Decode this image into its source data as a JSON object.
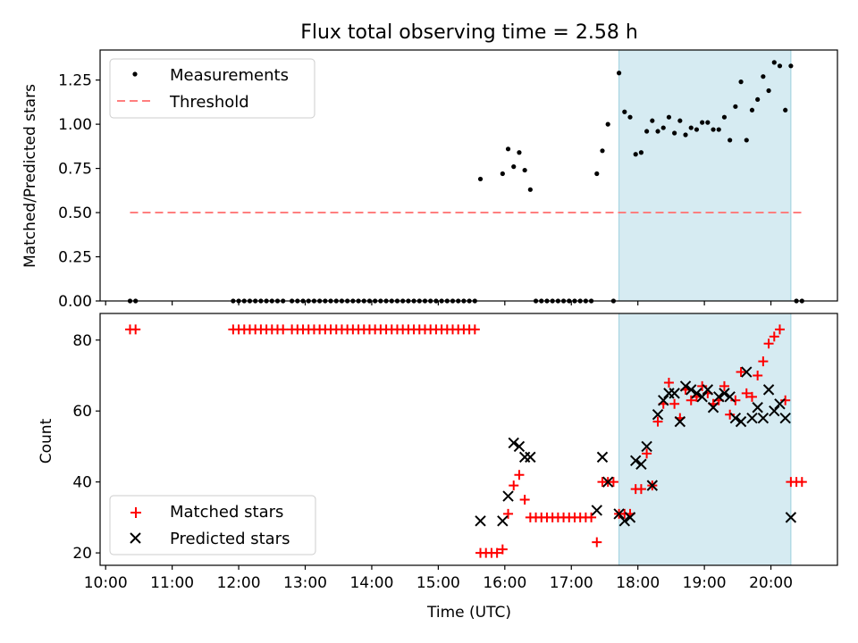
{
  "figure": {
    "title": "Flux total observing time = 2.58 h",
    "xlabel": "Time (UTC)",
    "xticks": [
      "10:00",
      "11:00",
      "12:00",
      "13:00",
      "14:00",
      "15:00",
      "16:00",
      "17:00",
      "18:00",
      "19:00",
      "20:00"
    ]
  },
  "colors": {
    "shade": "#add8e6",
    "threshold": "#ff7f7f",
    "matched": "#ff0000",
    "predicted": "#000000",
    "measurement": "#000000"
  },
  "chart_data": [
    {
      "type": "scatter",
      "panel": "top",
      "ylabel": "Matched/Predicted stars",
      "xlim": [
        "09:55",
        "21:00"
      ],
      "ylim": [
        0,
        1.42
      ],
      "yticks": [
        "0.00",
        "0.25",
        "0.50",
        "0.75",
        "1.00",
        "1.25"
      ],
      "legend": {
        "placement": "upper-left",
        "entries": [
          "Measurements",
          "Threshold"
        ]
      },
      "shaded_interval": [
        "17:43",
        "20:18"
      ],
      "threshold": {
        "name": "Threshold",
        "value": 0.5,
        "x": [
          "10:22",
          "20:30"
        ],
        "style": "dashed"
      },
      "series": [
        {
          "name": "Measurements",
          "points": [
            [
              "10:22",
              0
            ],
            [
              "10:27",
              0
            ],
            [
              "11:55",
              0
            ],
            [
              "12:00",
              0
            ],
            [
              "12:05",
              0
            ],
            [
              "12:10",
              0
            ],
            [
              "12:15",
              0
            ],
            [
              "12:20",
              0
            ],
            [
              "12:25",
              0
            ],
            [
              "12:30",
              0
            ],
            [
              "12:35",
              0
            ],
            [
              "12:40",
              0
            ],
            [
              "12:48",
              0
            ],
            [
              "12:53",
              0
            ],
            [
              "12:58",
              0
            ],
            [
              "13:03",
              0
            ],
            [
              "13:08",
              0
            ],
            [
              "13:13",
              0
            ],
            [
              "13:18",
              0
            ],
            [
              "13:23",
              0
            ],
            [
              "13:28",
              0
            ],
            [
              "13:33",
              0
            ],
            [
              "13:38",
              0
            ],
            [
              "13:43",
              0
            ],
            [
              "13:48",
              0
            ],
            [
              "13:53",
              0
            ],
            [
              "13:58",
              0
            ],
            [
              "14:03",
              0
            ],
            [
              "14:08",
              0
            ],
            [
              "14:13",
              0
            ],
            [
              "14:18",
              0
            ],
            [
              "14:23",
              0
            ],
            [
              "14:28",
              0
            ],
            [
              "14:33",
              0
            ],
            [
              "14:38",
              0
            ],
            [
              "14:43",
              0
            ],
            [
              "14:48",
              0
            ],
            [
              "14:53",
              0
            ],
            [
              "14:58",
              0
            ],
            [
              "15:03",
              0
            ],
            [
              "15:08",
              0
            ],
            [
              "15:13",
              0
            ],
            [
              "15:18",
              0
            ],
            [
              "15:23",
              0
            ],
            [
              "15:28",
              0
            ],
            [
              "15:33",
              0
            ],
            [
              "15:38",
              0.69
            ],
            [
              "15:58",
              0.72
            ],
            [
              "16:03",
              0.86
            ],
            [
              "16:08",
              0.76
            ],
            [
              "16:13",
              0.84
            ],
            [
              "16:18",
              0.74
            ],
            [
              "16:23",
              0.63
            ],
            [
              "16:28",
              0
            ],
            [
              "16:33",
              0
            ],
            [
              "16:38",
              0
            ],
            [
              "16:43",
              0
            ],
            [
              "16:48",
              0
            ],
            [
              "16:53",
              0
            ],
            [
              "16:58",
              0
            ],
            [
              "17:03",
              0
            ],
            [
              "17:08",
              0
            ],
            [
              "17:13",
              0
            ],
            [
              "17:18",
              0
            ],
            [
              "17:23",
              0.72
            ],
            [
              "17:28",
              0.85
            ],
            [
              "17:33",
              1.0
            ],
            [
              "17:38",
              0
            ],
            [
              "17:43",
              1.29
            ],
            [
              "17:48",
              1.07
            ],
            [
              "17:53",
              1.04
            ],
            [
              "17:58",
              0.83
            ],
            [
              "18:03",
              0.84
            ],
            [
              "18:08",
              0.96
            ],
            [
              "18:13",
              1.02
            ],
            [
              "18:18",
              0.96
            ],
            [
              "18:23",
              0.98
            ],
            [
              "18:28",
              1.04
            ],
            [
              "18:33",
              0.95
            ],
            [
              "18:38",
              1.02
            ],
            [
              "18:43",
              0.94
            ],
            [
              "18:48",
              0.98
            ],
            [
              "18:53",
              0.97
            ],
            [
              "18:58",
              1.01
            ],
            [
              "19:03",
              1.01
            ],
            [
              "19:08",
              0.97
            ],
            [
              "19:13",
              0.97
            ],
            [
              "19:18",
              1.04
            ],
            [
              "19:23",
              0.91
            ],
            [
              "19:28",
              1.1
            ],
            [
              "19:33",
              1.24
            ],
            [
              "19:38",
              0.91
            ],
            [
              "19:43",
              1.08
            ],
            [
              "19:48",
              1.14
            ],
            [
              "19:53",
              1.27
            ],
            [
              "19:58",
              1.19
            ],
            [
              "20:03",
              1.35
            ],
            [
              "20:08",
              1.33
            ],
            [
              "20:13",
              1.08
            ],
            [
              "20:18",
              1.33
            ],
            [
              "20:23",
              0
            ],
            [
              "20:28",
              0
            ]
          ]
        }
      ]
    },
    {
      "type": "scatter",
      "panel": "bottom",
      "ylabel": "Count",
      "xlabel": "Time (UTC)",
      "xlim": [
        "09:55",
        "21:00"
      ],
      "ylim": [
        16.5,
        87.5
      ],
      "yticks": [
        "20",
        "40",
        "60",
        "80"
      ],
      "legend": {
        "placement": "lower-left",
        "entries": [
          "Matched stars",
          "Predicted stars"
        ]
      },
      "shaded_interval": [
        "17:43",
        "20:18"
      ],
      "series": [
        {
          "name": "Matched stars",
          "marker": "+",
          "points": [
            [
              "10:22",
              83
            ],
            [
              "10:27",
              83
            ],
            [
              "11:55",
              83
            ],
            [
              "12:00",
              83
            ],
            [
              "12:05",
              83
            ],
            [
              "12:10",
              83
            ],
            [
              "12:15",
              83
            ],
            [
              "12:20",
              83
            ],
            [
              "12:25",
              83
            ],
            [
              "12:30",
              83
            ],
            [
              "12:35",
              83
            ],
            [
              "12:40",
              83
            ],
            [
              "12:48",
              83
            ],
            [
              "12:53",
              83
            ],
            [
              "12:58",
              83
            ],
            [
              "13:03",
              83
            ],
            [
              "13:08",
              83
            ],
            [
              "13:13",
              83
            ],
            [
              "13:18",
              83
            ],
            [
              "13:23",
              83
            ],
            [
              "13:28",
              83
            ],
            [
              "13:33",
              83
            ],
            [
              "13:38",
              83
            ],
            [
              "13:43",
              83
            ],
            [
              "13:48",
              83
            ],
            [
              "13:53",
              83
            ],
            [
              "13:58",
              83
            ],
            [
              "14:03",
              83
            ],
            [
              "14:08",
              83
            ],
            [
              "14:13",
              83
            ],
            [
              "14:18",
              83
            ],
            [
              "14:23",
              83
            ],
            [
              "14:28",
              83
            ],
            [
              "14:33",
              83
            ],
            [
              "14:38",
              83
            ],
            [
              "14:43",
              83
            ],
            [
              "14:48",
              83
            ],
            [
              "14:53",
              83
            ],
            [
              "14:58",
              83
            ],
            [
              "15:03",
              83
            ],
            [
              "15:08",
              83
            ],
            [
              "15:13",
              83
            ],
            [
              "15:18",
              83
            ],
            [
              "15:23",
              83
            ],
            [
              "15:28",
              83
            ],
            [
              "15:33",
              83
            ],
            [
              "15:38",
              20
            ],
            [
              "15:43",
              20
            ],
            [
              "15:48",
              20
            ],
            [
              "15:53",
              20
            ],
            [
              "15:58",
              21
            ],
            [
              "16:03",
              31
            ],
            [
              "16:08",
              39
            ],
            [
              "16:13",
              42
            ],
            [
              "16:18",
              35
            ],
            [
              "16:23",
              30
            ],
            [
              "16:28",
              30
            ],
            [
              "16:33",
              30
            ],
            [
              "16:38",
              30
            ],
            [
              "16:43",
              30
            ],
            [
              "16:48",
              30
            ],
            [
              "16:53",
              30
            ],
            [
              "16:58",
              30
            ],
            [
              "17:03",
              30
            ],
            [
              "17:08",
              30
            ],
            [
              "17:13",
              30
            ],
            [
              "17:18",
              30
            ],
            [
              "17:23",
              23
            ],
            [
              "17:28",
              40
            ],
            [
              "17:33",
              40
            ],
            [
              "17:38",
              40
            ],
            [
              "17:43",
              31
            ],
            [
              "17:48",
              31
            ],
            [
              "17:53",
              31
            ],
            [
              "17:58",
              38
            ],
            [
              "18:03",
              38
            ],
            [
              "18:08",
              48
            ],
            [
              "18:13",
              39
            ],
            [
              "18:18",
              57
            ],
            [
              "18:23",
              62
            ],
            [
              "18:28",
              68
            ],
            [
              "18:33",
              62
            ],
            [
              "18:38",
              58
            ],
            [
              "18:43",
              66
            ],
            [
              "18:48",
              63
            ],
            [
              "18:53",
              64
            ],
            [
              "18:58",
              67
            ],
            [
              "19:03",
              65
            ],
            [
              "19:08",
              62
            ],
            [
              "19:13",
              63
            ],
            [
              "19:18",
              67
            ],
            [
              "19:23",
              59
            ],
            [
              "19:28",
              63
            ],
            [
              "19:33",
              71
            ],
            [
              "19:38",
              65
            ],
            [
              "19:43",
              64
            ],
            [
              "19:48",
              70
            ],
            [
              "19:53",
              74
            ],
            [
              "19:58",
              79
            ],
            [
              "20:03",
              81
            ],
            [
              "20:08",
              83
            ],
            [
              "20:13",
              63
            ],
            [
              "20:18",
              40
            ],
            [
              "20:23",
              40
            ],
            [
              "20:28",
              40
            ]
          ]
        },
        {
          "name": "Predicted stars",
          "marker": "x",
          "points": [
            [
              "15:38",
              29
            ],
            [
              "15:58",
              29
            ],
            [
              "16:03",
              36
            ],
            [
              "16:08",
              51
            ],
            [
              "16:13",
              50
            ],
            [
              "16:18",
              47
            ],
            [
              "16:23",
              47
            ],
            [
              "17:23",
              32
            ],
            [
              "17:28",
              47
            ],
            [
              "17:33",
              40
            ],
            [
              "17:43",
              31
            ],
            [
              "17:48",
              29
            ],
            [
              "17:53",
              30
            ],
            [
              "17:58",
              46
            ],
            [
              "18:03",
              45
            ],
            [
              "18:08",
              50
            ],
            [
              "18:13",
              39
            ],
            [
              "18:18",
              59
            ],
            [
              "18:23",
              63
            ],
            [
              "18:28",
              65
            ],
            [
              "18:33",
              65
            ],
            [
              "18:38",
              57
            ],
            [
              "18:43",
              67
            ],
            [
              "18:48",
              66
            ],
            [
              "18:53",
              65
            ],
            [
              "18:58",
              64
            ],
            [
              "19:03",
              66
            ],
            [
              "19:08",
              61
            ],
            [
              "19:13",
              64
            ],
            [
              "19:18",
              65
            ],
            [
              "19:23",
              64
            ],
            [
              "19:28",
              58
            ],
            [
              "19:33",
              57
            ],
            [
              "19:38",
              71
            ],
            [
              "19:43",
              58
            ],
            [
              "19:48",
              61
            ],
            [
              "19:53",
              58
            ],
            [
              "19:58",
              66
            ],
            [
              "20:03",
              60
            ],
            [
              "20:08",
              62
            ],
            [
              "20:13",
              58
            ],
            [
              "20:18",
              30
            ]
          ]
        }
      ]
    }
  ]
}
